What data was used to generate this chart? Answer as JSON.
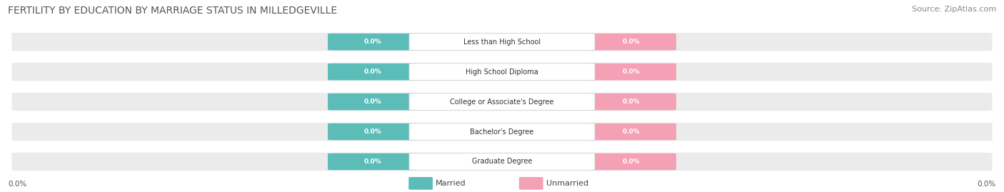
{
  "title": "FERTILITY BY EDUCATION BY MARRIAGE STATUS IN MILLEDGEVILLE",
  "source": "Source: ZipAtlas.com",
  "categories": [
    "Less than High School",
    "High School Diploma",
    "College or Associate's Degree",
    "Bachelor's Degree",
    "Graduate Degree"
  ],
  "married_color": "#5bbcb8",
  "unmarried_color": "#f4a0b5",
  "row_bg_even": "#efefef",
  "row_bg_odd": "#e8e8e8",
  "label_color": "#333333",
  "value_text": "0.0%",
  "axis_label": "0.0%",
  "background_color": "#ffffff",
  "title_fontsize": 10,
  "source_fontsize": 8,
  "bar_height": 0.62,
  "n_rows": 5
}
